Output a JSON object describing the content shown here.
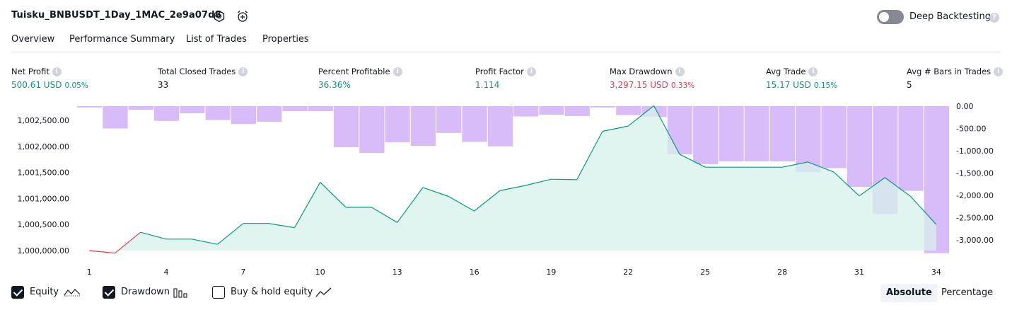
{
  "header": {
    "strategy_name": "Tuisku_BNBUSDT_1Day_1MAC_2e9a07d8",
    "settings_icon": "settings-hexagon-icon",
    "alert_icon": "alarm-clock-plus-icon",
    "deep_backtesting_label": "Deep Backtesting",
    "deep_backtesting_enabled": false
  },
  "tabs": [
    {
      "label": "Overview",
      "active": true
    },
    {
      "label": "Performance Summary",
      "active": false
    },
    {
      "label": "List of Trades",
      "active": false
    },
    {
      "label": "Properties",
      "active": false
    }
  ],
  "metrics": [
    {
      "label": "Net Profit",
      "value": "500.61 USD",
      "pct": "0.05%",
      "tone": "pos"
    },
    {
      "label": "Total Closed Trades",
      "value": "33",
      "pct": "",
      "tone": "neutral"
    },
    {
      "label": "Percent Profitable",
      "value": "36.36%",
      "pct": "",
      "tone": "pos"
    },
    {
      "label": "Profit Factor",
      "value": "1.114",
      "pct": "",
      "tone": "pos"
    },
    {
      "label": "Max Drawdown",
      "value": "3,297.15 USD",
      "pct": "0.33%",
      "tone": "neg"
    },
    {
      "label": "Avg Trade",
      "value": "15.17 USD",
      "pct": "0.15%",
      "tone": "pos"
    },
    {
      "label": "Avg # Bars in Trades",
      "value": "5",
      "pct": "",
      "tone": "neutral"
    }
  ],
  "chart_data": {
    "type": "line+bar",
    "x_ticks": [
      "1",
      "4",
      "7",
      "10",
      "13",
      "16",
      "19",
      "22",
      "25",
      "28",
      "31",
      "34"
    ],
    "y_left_ticks": [
      "1,000,000.00",
      "1,000,500.00",
      "1,001,000.00",
      "1,001,500.00",
      "1,002,000.00",
      "1,002,500.00"
    ],
    "y_left_range": [
      1000000,
      1002500
    ],
    "y_right_ticks": [
      "0.00",
      "-500.00",
      "-1,000.00",
      "-1,500.00",
      "-2,000.00",
      "-2,500.00",
      "-3,000.00"
    ],
    "y_right_range": [
      -3000,
      0
    ],
    "equity": [
      1000000,
      999950,
      1000350,
      1000220,
      1000220,
      1000120,
      1000520,
      1000520,
      1000440,
      1001310,
      1000830,
      1000830,
      1000540,
      1001210,
      1001040,
      1000760,
      1001150,
      1001250,
      1001370,
      1001360,
      1002290,
      1002390,
      1002780,
      1001850,
      1001600,
      1001600,
      1001600,
      1001600,
      1001700,
      1001510,
      1001050,
      1001400,
      1001040,
      1000500
    ],
    "drawdown": [
      -30,
      -500,
      -80,
      -330,
      -160,
      -310,
      -400,
      -350,
      -110,
      -110,
      -920,
      -1050,
      -810,
      -890,
      -600,
      -800,
      -900,
      -230,
      -190,
      -220,
      -30,
      -200,
      -240,
      -1080,
      -1300,
      -1240,
      -1240,
      -1240,
      -1480,
      -1390,
      -1810,
      -2420,
      -1900,
      -3297
    ],
    "series": [
      {
        "name": "Equity",
        "color": "#089981",
        "area_fill": "#d6f1ea",
        "loss_color": "#f23645"
      },
      {
        "name": "Drawdown",
        "color": "#c9a6f7"
      }
    ]
  },
  "legend": {
    "items": [
      {
        "label": "Equity",
        "checked": true,
        "icon": "equity-line-icon"
      },
      {
        "label": "Drawdown",
        "checked": true,
        "icon": "drawdown-bars-icon"
      },
      {
        "label": "Buy & hold equity",
        "checked": false,
        "icon": "buy-hold-line-icon"
      }
    ],
    "modes": [
      {
        "label": "Absolute",
        "active": true
      },
      {
        "label": "Percentage",
        "active": false
      }
    ]
  }
}
